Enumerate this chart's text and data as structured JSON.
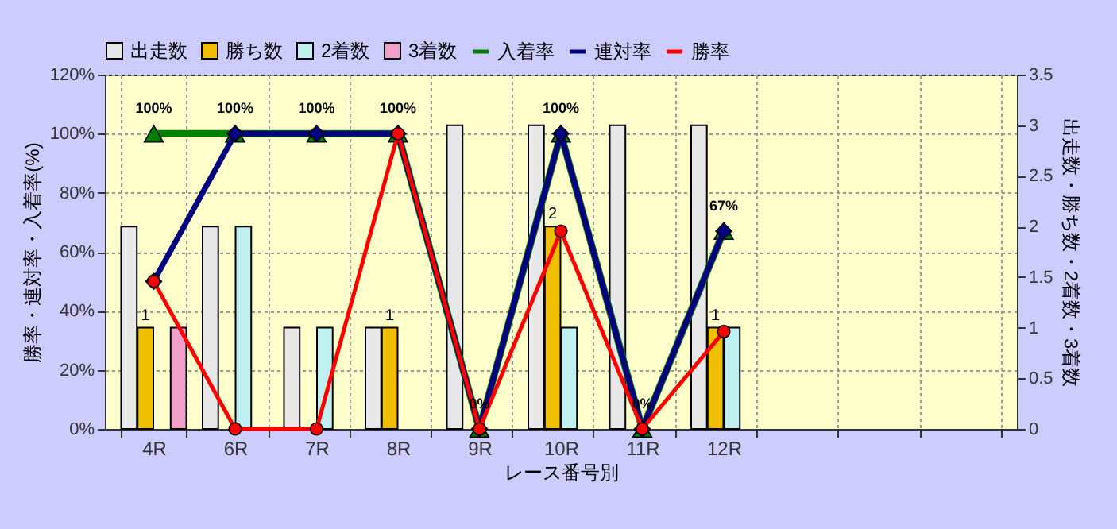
{
  "chart_data": {
    "type": "bar",
    "categories": [
      "4R",
      "6R",
      "7R",
      "8R",
      "9R",
      "10R",
      "11R",
      "12R",
      null,
      null,
      null
    ],
    "xlabel": "レース番号別",
    "ylabel": "勝率・連対率・入着率(%)",
    "y2label": "出走数・勝ち数・2着数・3着数",
    "series": [
      {
        "name": "出走数",
        "axis": "y2",
        "color": "#e8e8e8",
        "values": [
          2,
          2,
          1,
          1,
          3,
          3,
          3,
          3,
          null,
          null,
          null
        ]
      },
      {
        "name": "勝ち数",
        "axis": "y2",
        "color": "#f0c000",
        "values": [
          1,
          0,
          0,
          1,
          0,
          2,
          0,
          1,
          null,
          null,
          null
        ],
        "value_labels": [
          "1",
          null,
          null,
          "1",
          null,
          "2",
          null,
          "1",
          null,
          null,
          null
        ]
      },
      {
        "name": "2着数",
        "axis": "y2",
        "color": "#c0f0f0",
        "values": [
          0,
          2,
          1,
          0,
          0,
          1,
          0,
          1,
          null,
          null,
          null
        ]
      },
      {
        "name": "3着数",
        "axis": "y2",
        "color": "#f0a0c8",
        "values": [
          1,
          0,
          0,
          0,
          0,
          0,
          0,
          0,
          null,
          null,
          null
        ]
      },
      {
        "name": "入着率",
        "type": "line",
        "axis": "y",
        "color": "#008000",
        "marker": "triangle",
        "values": [
          100,
          100,
          100,
          100,
          0,
          100,
          0,
          67,
          null,
          null,
          null
        ],
        "value_labels": [
          "100%",
          "100%",
          "100%",
          "100%",
          "0%",
          "100%",
          "0%",
          "67%",
          null,
          null,
          null
        ]
      },
      {
        "name": "連対率",
        "type": "line",
        "axis": "y",
        "color": "#000080",
        "marker": "diamond",
        "values": [
          50,
          100,
          100,
          100,
          0,
          100,
          0,
          67,
          null,
          null,
          null
        ]
      },
      {
        "name": "勝率",
        "type": "line",
        "axis": "y",
        "color": "#ff0000",
        "marker": "circle",
        "values": [
          50,
          0,
          0,
          100,
          0,
          67,
          0,
          33,
          null,
          null,
          null
        ]
      }
    ],
    "ylim": [
      0,
      120
    ],
    "yticks": [
      {
        "value": 0,
        "label": "0%"
      },
      {
        "value": 20,
        "label": "20%"
      },
      {
        "value": 40,
        "label": "40%"
      },
      {
        "value": 60,
        "label": "60%"
      },
      {
        "value": 80,
        "label": "80%"
      },
      {
        "value": 100,
        "label": "100%"
      },
      {
        "value": 120,
        "label": "120%"
      }
    ],
    "y2lim": [
      0,
      3.5
    ],
    "y2ticks": [
      0,
      0.5,
      1,
      1.5,
      2,
      2.5,
      3,
      3.5
    ],
    "grid": true,
    "legend": "top"
  }
}
